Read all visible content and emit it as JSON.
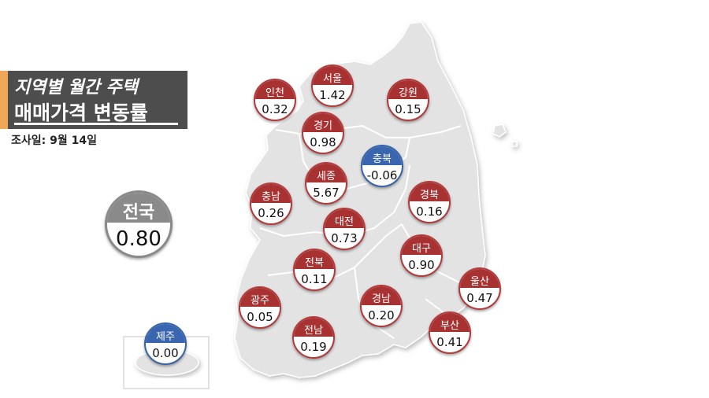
{
  "title": {
    "line1": "지역별 월간 주택",
    "line2": "매매가격 변동률"
  },
  "survey_date": "조사일: 9월 14일",
  "national": {
    "name": "전국",
    "value": "0.80"
  },
  "regions": {
    "incheon": {
      "name": "인천",
      "value": "0.32"
    },
    "seoul": {
      "name": "서울",
      "value": "1.42"
    },
    "gangwon": {
      "name": "강원",
      "value": "0.15"
    },
    "gyeonggi": {
      "name": "경기",
      "value": "0.98"
    },
    "chungbuk": {
      "name": "충북",
      "value": "-0.06"
    },
    "sejong": {
      "name": "세종",
      "value": "5.67"
    },
    "chungnam": {
      "name": "충남",
      "value": "0.26"
    },
    "gyeongbuk": {
      "name": "경북",
      "value": "0.16"
    },
    "daejeon": {
      "name": "대전",
      "value": "0.73"
    },
    "daegu": {
      "name": "대구",
      "value": "0.90"
    },
    "jeonbuk": {
      "name": "전북",
      "value": "0.11"
    },
    "ulsan": {
      "name": "울산",
      "value": "0.47"
    },
    "gwangju": {
      "name": "광주",
      "value": "0.05"
    },
    "gyeongnam": {
      "name": "경남",
      "value": "0.20"
    },
    "busan": {
      "name": "부산",
      "value": "0.41"
    },
    "jeonnam": {
      "name": "전남",
      "value": "0.19"
    },
    "jeju": {
      "name": "제주",
      "value": "0.00"
    }
  },
  "colors": {
    "positive": "#a83232",
    "negative": "#3a66b0",
    "national": "#8a8a8a",
    "land": "#e3e3e3",
    "title_bg": "#4d4d4d",
    "title_accent": "#f0a858"
  }
}
